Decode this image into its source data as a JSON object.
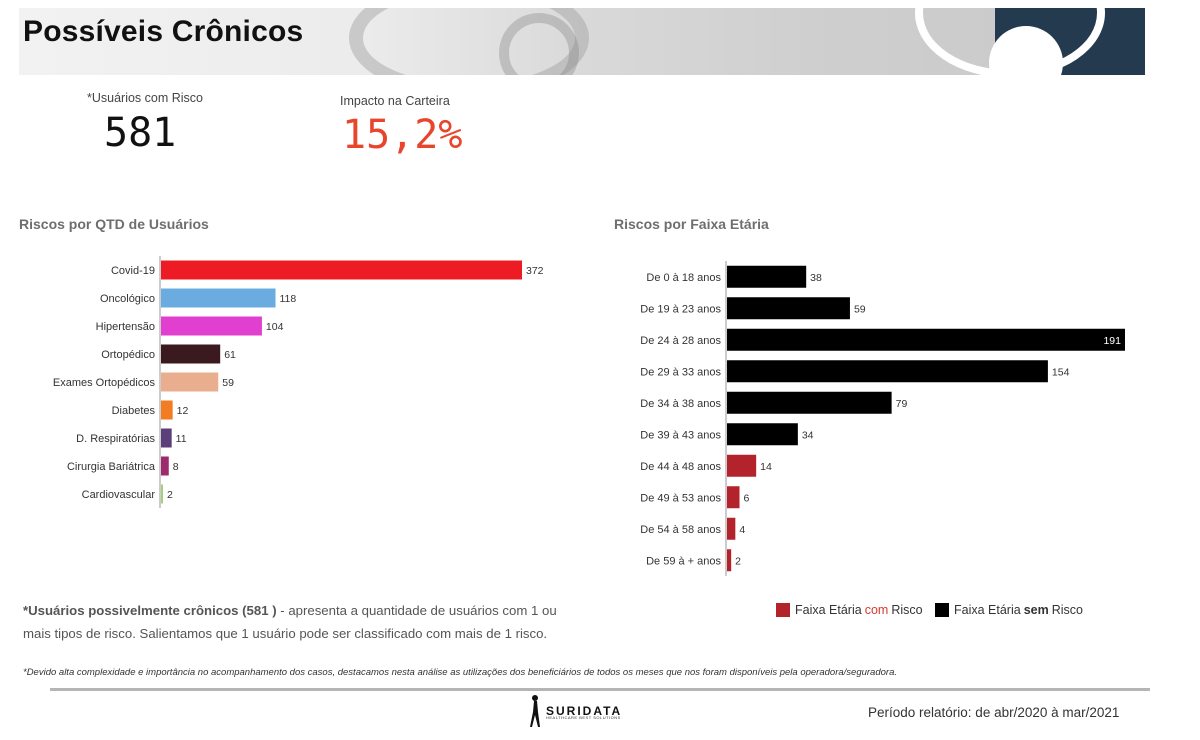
{
  "header": {
    "title": "Possíveis Crônicos"
  },
  "kpis": {
    "users_label": "*Usuários com Risco",
    "users_value": "581",
    "impact_label": "Impacto na Carteira",
    "impact_value": "15,2%",
    "impact_color": "#e8452c"
  },
  "chart_data": [
    {
      "type": "bar",
      "orientation": "horizontal",
      "title": "Riscos por QTD de Usuários",
      "categories": [
        "Covid-19",
        "Oncológico",
        "Hipertensão",
        "Ortopédico",
        "Exames Ortopédicos",
        "Diabetes",
        "D. Respiratórias",
        "Cirurgia Bariátrica",
        "Cardiovascular"
      ],
      "values": [
        372,
        118,
        104,
        61,
        59,
        12,
        11,
        8,
        2
      ],
      "colors": [
        "#ed1c24",
        "#6aacdf",
        "#e03fcf",
        "#3b1a1f",
        "#e9ae8e",
        "#f17c22",
        "#5b3f7a",
        "#9e2a6e",
        "#a6cf7d"
      ],
      "xlim": [
        0,
        372
      ]
    },
    {
      "type": "bar",
      "orientation": "horizontal",
      "title": "Riscos por Faixa Etária",
      "categories": [
        "De 0 à 18 anos",
        "De 19 à 23 anos",
        "De 24 à 28 anos",
        "De 29 à 33 anos",
        "De 34 à 38 anos",
        "De 39 à 43 anos",
        "De 44 à 48 anos",
        "De 49 à 53 anos",
        "De 54 à 58 anos",
        "De 59 à + anos"
      ],
      "values": [
        38,
        59,
        191,
        154,
        79,
        34,
        14,
        6,
        4,
        2
      ],
      "groups": [
        "sem",
        "sem",
        "sem",
        "sem",
        "sem",
        "sem",
        "com",
        "com",
        "com",
        "com"
      ],
      "colors": {
        "com": "#b3232b",
        "sem": "#000000"
      },
      "xlim": [
        0,
        191
      ],
      "legend": {
        "position": "bottom-right",
        "com": {
          "prefix": "Faixa Etária ",
          "highlight": "com",
          "suffix": " Risco"
        },
        "sem": {
          "prefix": "Faixa Etária ",
          "highlight": "sem",
          "suffix": " Risco"
        }
      }
    }
  ],
  "notes": {
    "main_bold": "*Usuários possivelmente crônicos (581 )",
    "main_rest": " - apresenta a quantidade de usuários com 1 ou mais tipos de risco. Salientamos que 1 usuário pode ser classificado com mais de 1 risco.",
    "footnote": "*Devido alta complexidade e importância no acompanhamento dos casos, destacamos nesta análise as utilizações dos beneficiários de todos os meses que nos foram disponíveis pela operadora/seguradora."
  },
  "footer": {
    "brand": "SURIDATA",
    "tagline": "HEALTHCARE BEST SOLUTIONS",
    "period": "Período relatório: de abr/2020 à mar/2021"
  }
}
